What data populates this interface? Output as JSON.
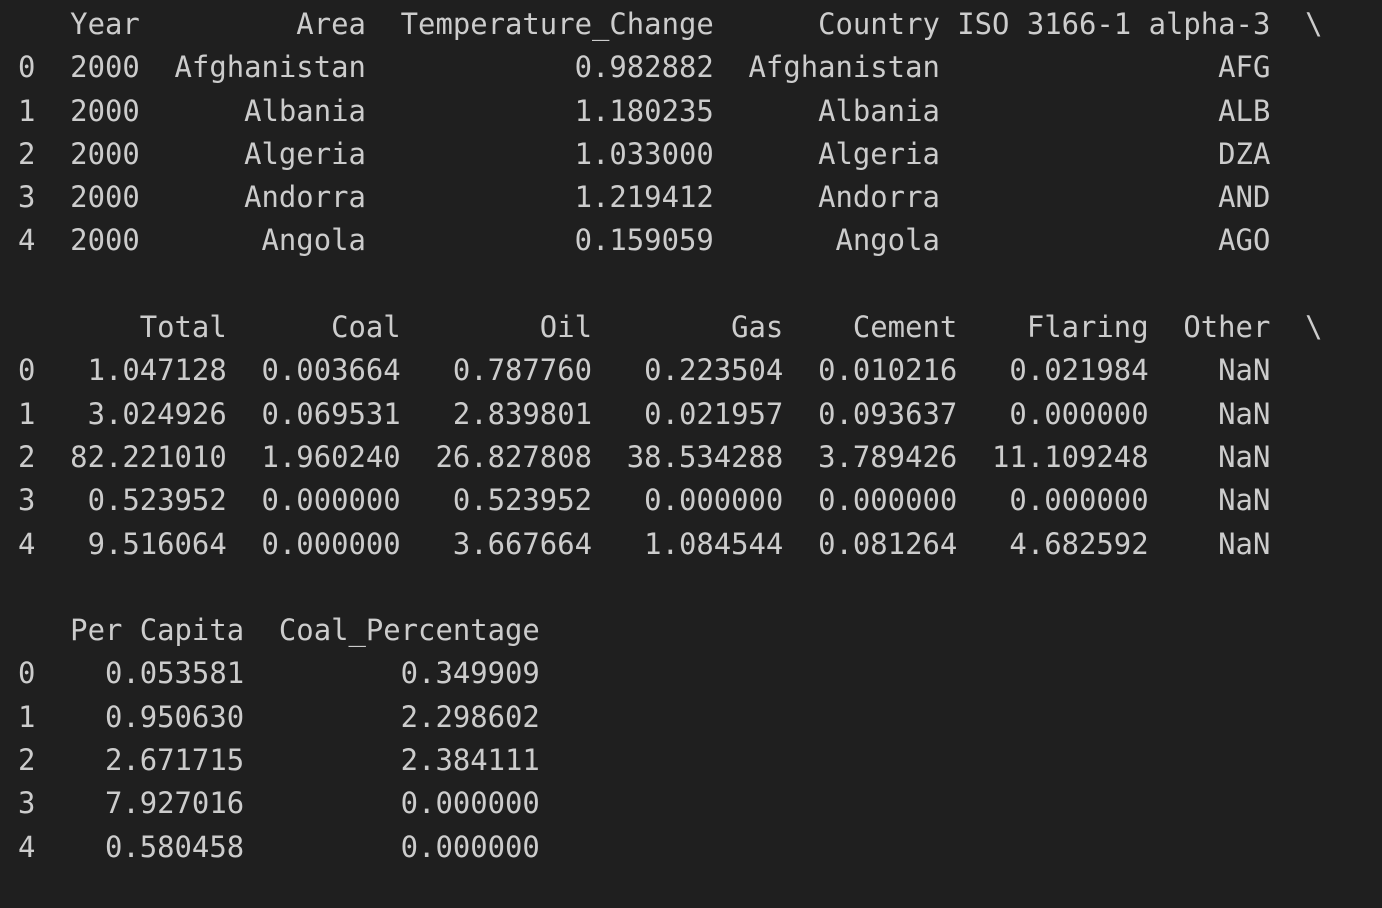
{
  "output_lines": [
    "   Year         Area  Temperature_Change      Country ISO 3166-1 alpha-3  \\",
    "0  2000  Afghanistan            0.982882  Afghanistan                AFG   ",
    "1  2000      Albania            1.180235      Albania                ALB   ",
    "2  2000      Algeria            1.033000      Algeria                DZA   ",
    "3  2000      Andorra            1.219412      Andorra                AND   ",
    "4  2000       Angola            0.159059       Angola                AGO   ",
    "",
    "       Total      Coal        Oil        Gas    Cement    Flaring  Other  \\",
    "0   1.047128  0.003664   0.787760   0.223504  0.010216   0.021984    NaN   ",
    "1   3.024926  0.069531   2.839801   0.021957  0.093637   0.000000    NaN   ",
    "2  82.221010  1.960240  26.827808  38.534288  3.789426  11.109248    NaN   ",
    "3   0.523952  0.000000   0.523952   0.000000  0.000000   0.000000    NaN   ",
    "4   9.516064  0.000000   3.667664   1.084544  0.081264   4.682592    NaN   ",
    "",
    "   Per Capita  Coal_Percentage  ",
    "0    0.053581         0.349909  ",
    "1    0.950630         2.298602  ",
    "2    2.671715         2.384111  ",
    "3    7.927016         0.000000  ",
    "4    0.580458         0.000000  "
  ]
}
